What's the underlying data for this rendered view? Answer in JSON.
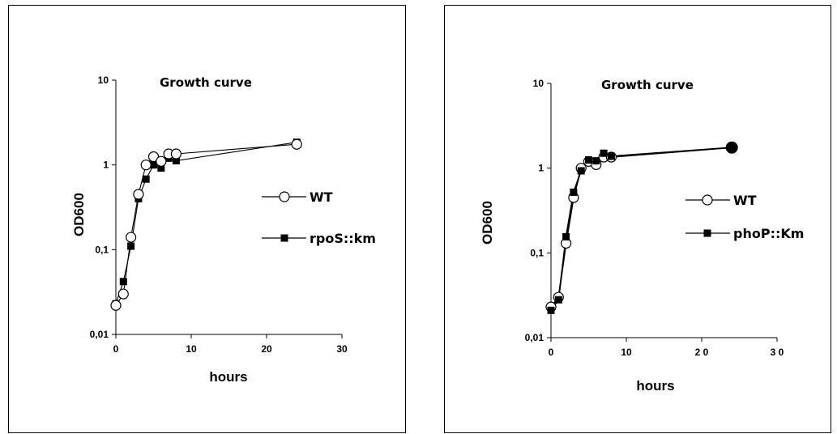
{
  "chart_data": [
    {
      "type": "line",
      "title": "Growth curve",
      "xlabel": "hours",
      "ylabel": "OD600",
      "xlim": [
        0,
        30
      ],
      "ylim": [
        0.01,
        10
      ],
      "yscale": "log",
      "xticks": [
        0,
        10,
        20,
        30
      ],
      "xtick_labels": [
        "0",
        "10",
        "20",
        "30"
      ],
      "yticks": [
        0.01,
        0.1,
        1,
        10
      ],
      "ytick_labels": [
        "0,01",
        "0,1",
        "1",
        "10"
      ],
      "grid": false,
      "legend_position": "right",
      "series": [
        {
          "name": "WT",
          "marker": "open-circle",
          "color": "#000000",
          "x": [
            0,
            1,
            2,
            3,
            4,
            5,
            6,
            7,
            8,
            24
          ],
          "y": [
            0.022,
            0.03,
            0.14,
            0.45,
            1.0,
            1.25,
            1.1,
            1.35,
            1.35,
            1.75
          ]
        },
        {
          "name": "rpoS::km",
          "marker": "filled-square",
          "color": "#000000",
          "x": [
            0,
            1,
            2,
            3,
            4,
            5,
            6,
            7,
            8,
            24
          ],
          "y": [
            0.023,
            0.042,
            0.11,
            0.4,
            0.68,
            1.0,
            0.92,
            1.2,
            1.12,
            1.85
          ]
        }
      ]
    },
    {
      "type": "line",
      "title": "Growth curve",
      "xlabel": "hours",
      "ylabel": "OD600",
      "xlim": [
        0,
        30
      ],
      "ylim": [
        0.01,
        10
      ],
      "yscale": "log",
      "xticks": [
        0,
        10,
        20,
        30
      ],
      "xtick_labels": [
        "0",
        "10",
        "2 0",
        "3 0"
      ],
      "yticks": [
        0.01,
        0.1,
        1,
        10
      ],
      "ytick_labels": [
        "0,01",
        "0,1",
        "1",
        "10"
      ],
      "grid": false,
      "legend_position": "right",
      "series": [
        {
          "name": "WT",
          "marker": "open-circle",
          "color": "#000000",
          "x": [
            0,
            1,
            2,
            3,
            4,
            5,
            6,
            7,
            8,
            24
          ],
          "y": [
            0.023,
            0.03,
            0.13,
            0.45,
            1.0,
            1.2,
            1.1,
            1.35,
            1.35,
            1.75
          ]
        },
        {
          "name": "phoP::Km",
          "marker": "filled-square",
          "color": "#000000",
          "x": [
            0,
            1,
            2,
            3,
            4,
            5,
            6,
            7,
            8,
            24
          ],
          "y": [
            0.021,
            0.028,
            0.155,
            0.52,
            0.93,
            1.25,
            1.22,
            1.5,
            1.38,
            1.75
          ]
        }
      ]
    }
  ]
}
